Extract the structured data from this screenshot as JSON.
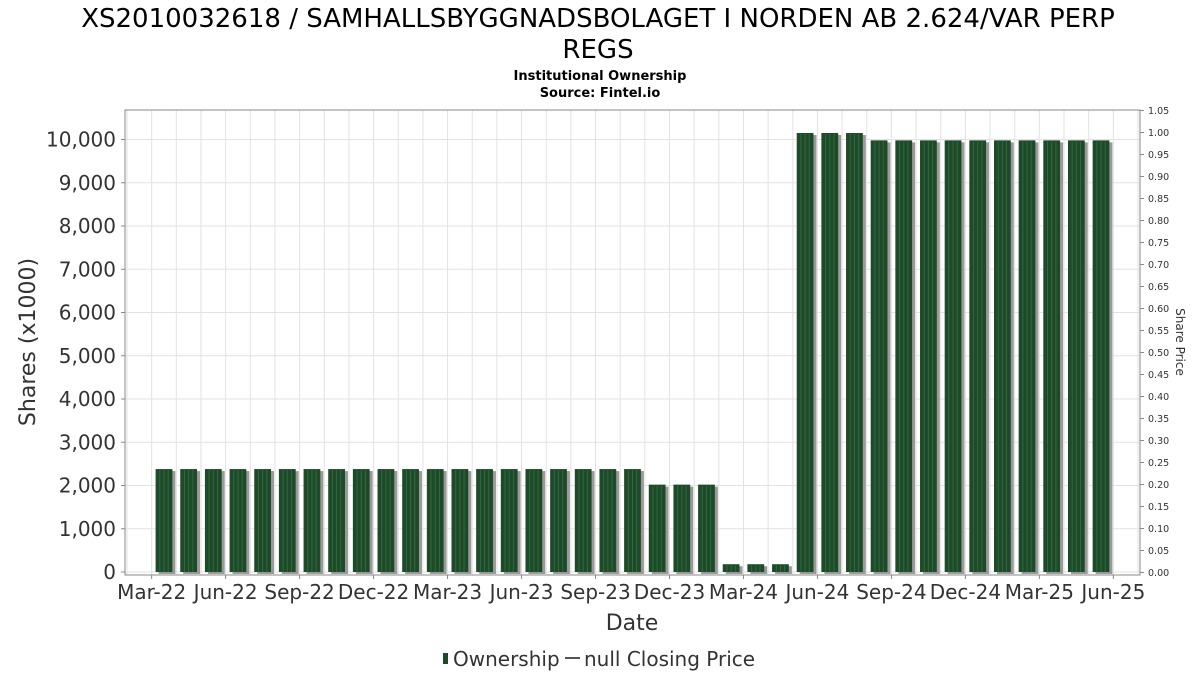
{
  "chart_data": {
    "type": "bar",
    "title": "XS2010032618 / SAMHALLSBYGGNADSBOLAGET I NORDEN AB 2.624/VAR PERP",
    "title_line2": "REGS",
    "subtitle": "Institutional Ownership",
    "source": "Source: Fintel.io",
    "xlabel": "Date",
    "ylabel": "Shares (x1000)",
    "y2label": "Share Price",
    "ylim": [
      0,
      10700
    ],
    "y_ticks": [
      0,
      1000,
      2000,
      3000,
      4000,
      5000,
      6000,
      7000,
      8000,
      9000,
      10000
    ],
    "y_tick_labels": [
      "0",
      "1,000",
      "2,000",
      "3,000",
      "4,000",
      "5,000",
      "6,000",
      "7,000",
      "8,000",
      "9,000",
      "10,000"
    ],
    "y2lim": [
      0,
      1.05
    ],
    "y2_ticks": [
      "0.00",
      "0.05",
      "0.10",
      "0.15",
      "0.20",
      "0.25",
      "0.30",
      "0.35",
      "0.40",
      "0.45",
      "0.50",
      "0.55",
      "0.60",
      "0.65",
      "0.70",
      "0.75",
      "0.80",
      "0.85",
      "0.90",
      "0.95",
      "1.00",
      "1.05"
    ],
    "x_tick_labels": [
      "Mar-22",
      "Jun-22",
      "Sep-22",
      "Dec-22",
      "Mar-23",
      "Jun-23",
      "Sep-23",
      "Dec-23",
      "Mar-24",
      "Jun-24",
      "Sep-24",
      "Dec-24",
      "Mar-25",
      "Jun-25"
    ],
    "x_slots": 41,
    "x_tick_slots": [
      1,
      4,
      7,
      10,
      13,
      16,
      19,
      22,
      25,
      28,
      31,
      34,
      37,
      40
    ],
    "bar_start_slot": 1.5,
    "series": [
      {
        "name": "Ownership",
        "color": "#1e4a2a",
        "values": [
          2380,
          2380,
          2380,
          2380,
          2380,
          2380,
          2380,
          2380,
          2380,
          2380,
          2380,
          2380,
          2380,
          2380,
          2380,
          2380,
          2380,
          2380,
          2380,
          2380,
          2020,
          2020,
          2020,
          180,
          180,
          180,
          10150,
          10150,
          10150,
          9980,
          9980,
          9980,
          9980,
          9980,
          9980,
          9980,
          9980,
          9980,
          9980
        ]
      }
    ],
    "legend": {
      "position": "bottom-center",
      "items": [
        {
          "label": "Ownership",
          "type": "bar",
          "color": "#1e4a2a"
        },
        {
          "label": "null Closing Price",
          "type": "line",
          "color": "#555555"
        }
      ]
    },
    "grid": true
  }
}
